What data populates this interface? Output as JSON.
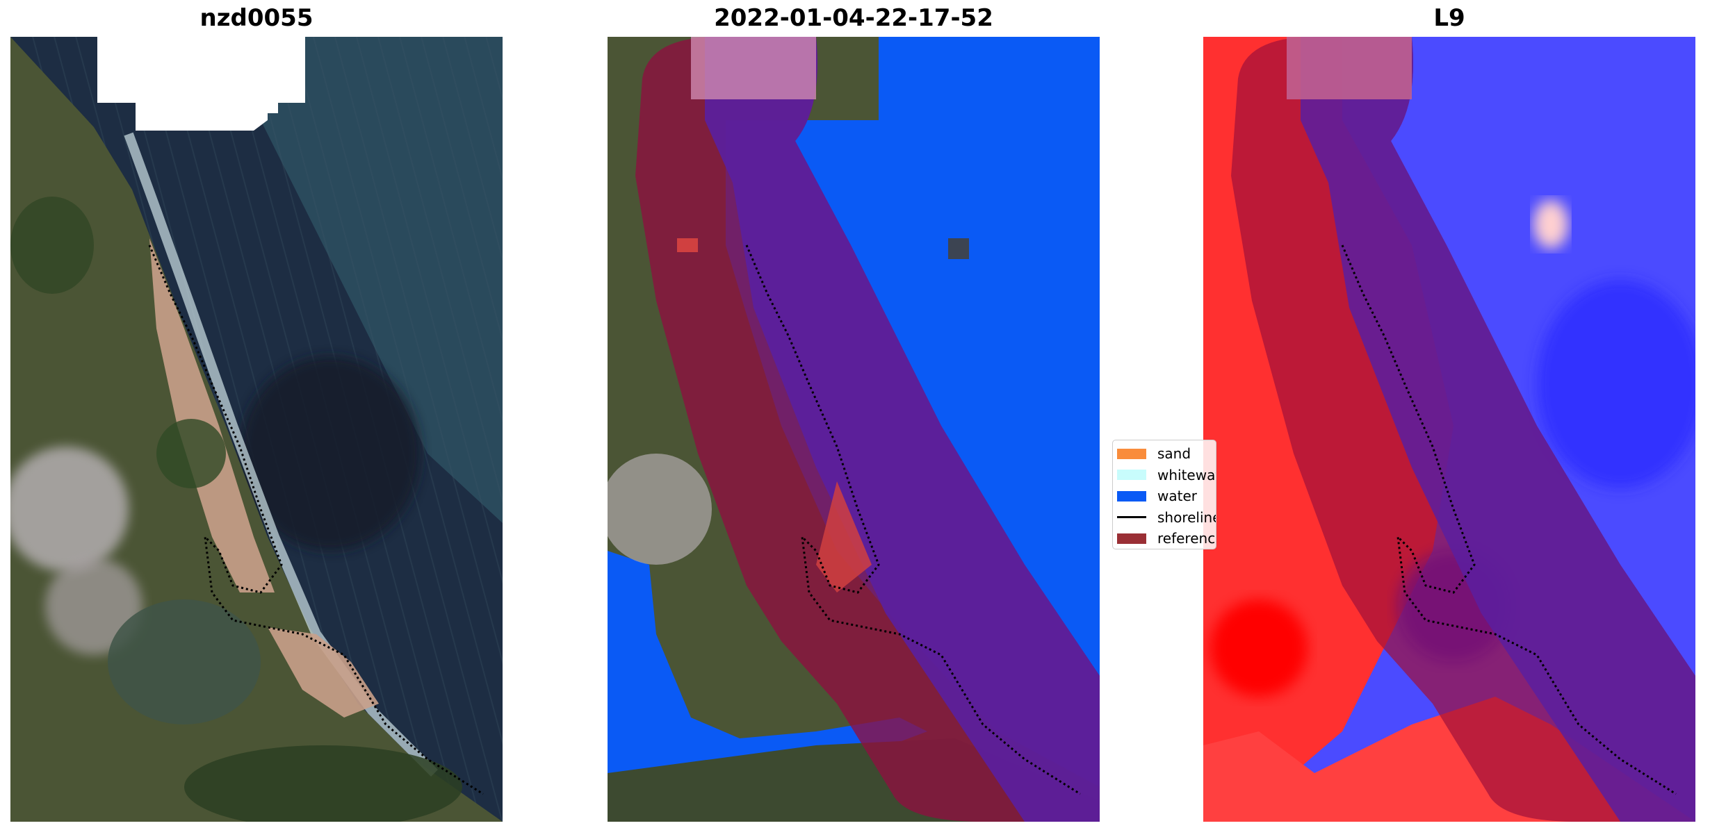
{
  "panels": [
    {
      "title": "nzd0055",
      "kind": "rgb-image"
    },
    {
      "title": "2022-01-04-22-17-52",
      "kind": "classified-image"
    },
    {
      "title": "L9",
      "kind": "index-image"
    }
  ],
  "legend": {
    "items": [
      {
        "label": "sand",
        "color": "#f98c3b",
        "type": "patch"
      },
      {
        "label": "whitewater",
        "color": "#c8fcfc",
        "type": "patch"
      },
      {
        "label": "water",
        "color": "#0a5af5",
        "type": "patch"
      },
      {
        "label": "shoreline",
        "color": "#000000",
        "type": "line"
      },
      {
        "label": "reference shoreline buffer",
        "color": "#9a2f35",
        "type": "patch"
      }
    ]
  },
  "colors": {
    "ocean": "#1c2b41",
    "land": "#4f5a3a",
    "water_class": "#0a5af5",
    "buffer": "#8e1040",
    "index_positive": "#ff2020",
    "index_negative": "#3a3aff"
  }
}
